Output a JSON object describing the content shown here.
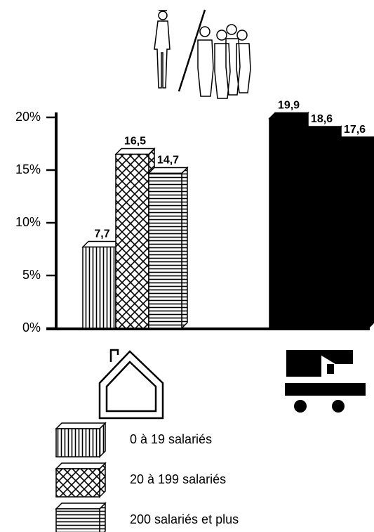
{
  "chart_data": {
    "type": "bar",
    "categories": [
      null,
      null
    ],
    "category_styles": [
      "pattern",
      "solid"
    ],
    "series": [
      {
        "name": "0 à 19 salariés",
        "color": "#000000",
        "pattern": "vertical",
        "values": [
          7.7,
          19.9
        ],
        "value_labels": [
          "7,7",
          "19,9"
        ]
      },
      {
        "name": "20 à 199 salariés",
        "color": "#000000",
        "pattern": "crosshatch",
        "values": [
          16.5,
          18.6
        ],
        "value_labels": [
          "16,5",
          "18,6"
        ]
      },
      {
        "name": "200 salariés et plus",
        "color": "#000000",
        "pattern": "horizontal",
        "values": [
          14.7,
          17.6
        ],
        "value_labels": [
          "14,7",
          "17,6"
        ]
      }
    ],
    "ylim": [
      0,
      20
    ],
    "yticks": [
      {
        "value": 0,
        "label": "0%"
      },
      {
        "value": 5,
        "label": "5%"
      },
      {
        "value": 10,
        "label": "10%"
      },
      {
        "value": 15,
        "label": "15%"
      },
      {
        "value": 20,
        "label": "20%"
      }
    ],
    "grid": false
  }
}
